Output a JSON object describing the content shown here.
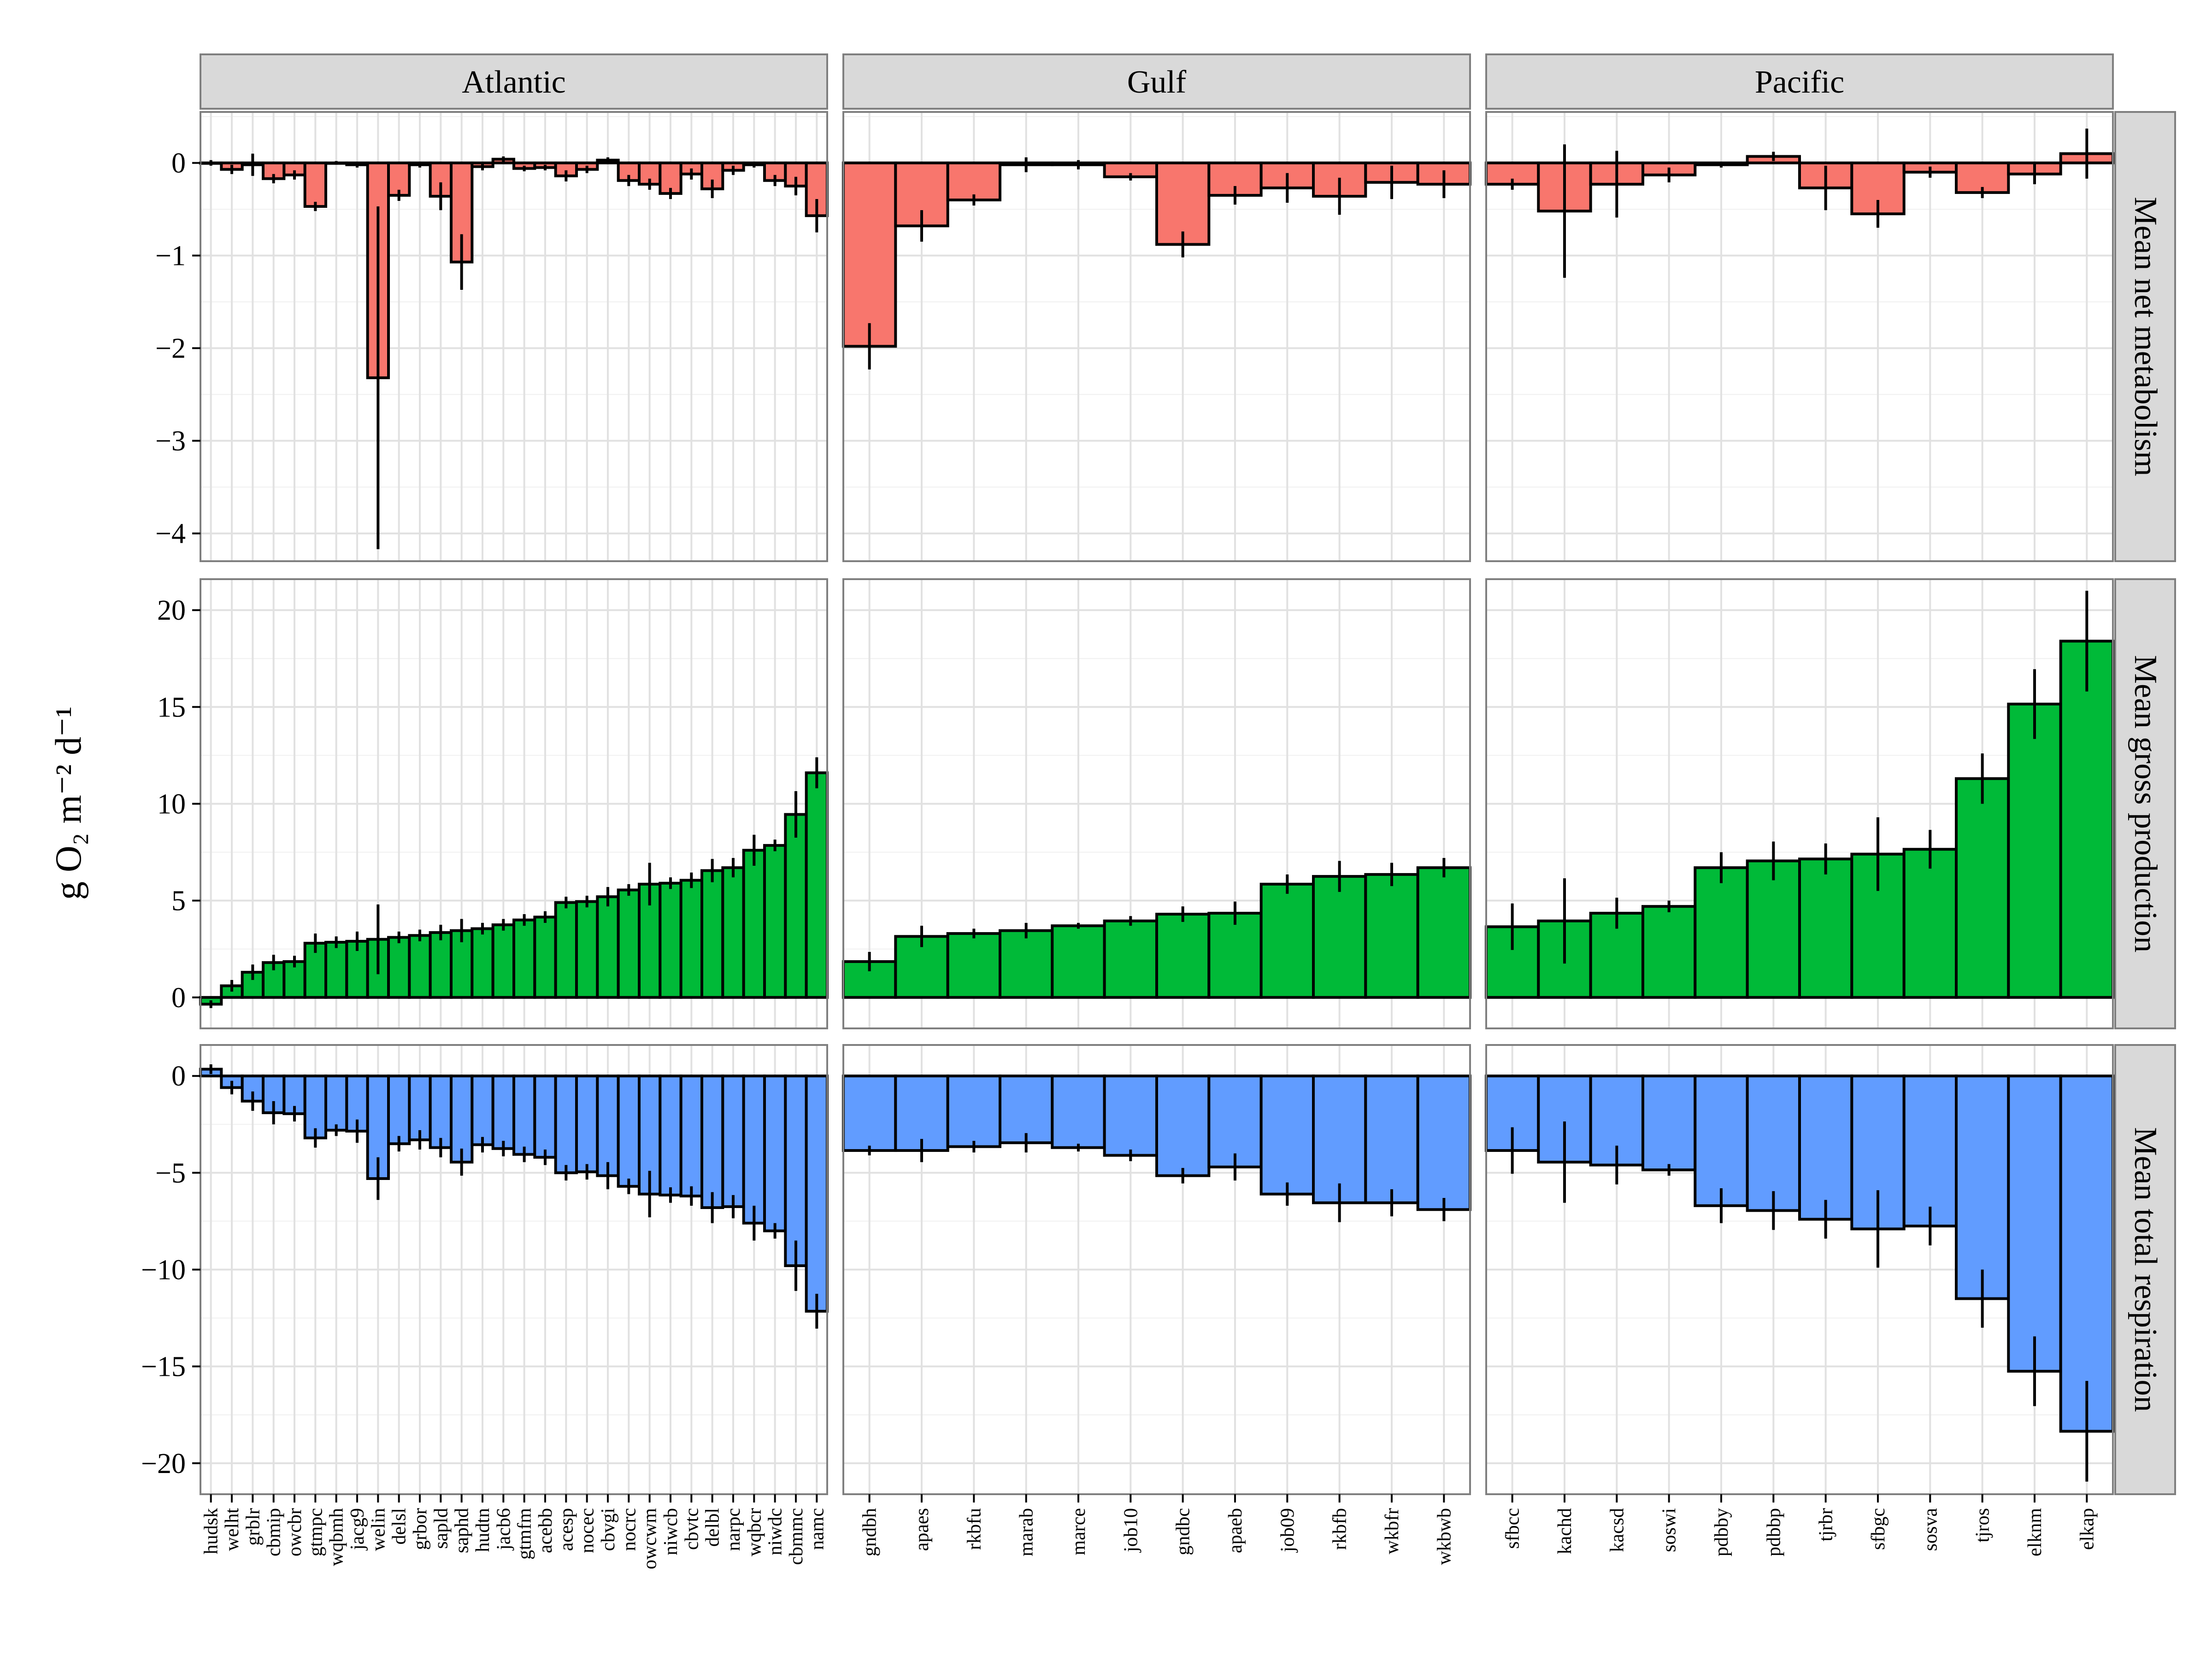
{
  "chart_data": {
    "type": "bar",
    "ylabel": "g O₂ m⁻² d⁻¹",
    "columns": [
      "Atlantic",
      "Gulf",
      "Pacific"
    ],
    "rows": [
      "Mean net metabolism",
      "Mean gross production",
      "Mean total respiration"
    ],
    "row_ylim": [
      [
        -4.3,
        0.55
      ],
      [
        -1.6,
        21.6
      ],
      [
        -21.6,
        1.6
      ]
    ],
    "row_yticks": [
      [
        0,
        -1,
        -2,
        -3,
        -4
      ],
      [
        0,
        5,
        10,
        15,
        20
      ],
      [
        0,
        -5,
        -10,
        -15,
        -20
      ]
    ],
    "tick_labels": [
      [
        "0",
        "−1",
        "−2",
        "−3",
        "−4"
      ],
      [
        "0",
        "5",
        "10",
        "15",
        "20"
      ],
      [
        "0",
        "−5",
        "−10",
        "−15",
        "−20"
      ]
    ],
    "row_colors": [
      "#F8766D",
      "#00BA38",
      "#619CFF"
    ],
    "grid": true,
    "panels": [
      {
        "column": "Atlantic",
        "categories": [
          "hudsk",
          "welht",
          "grblr",
          "cbmip",
          "owcbr",
          "gtmpc",
          "wqbmh",
          "jacg9",
          "welin",
          "delsl",
          "grbor",
          "sapld",
          "saphd",
          "hudtn",
          "jacb6",
          "gtmfm",
          "acebb",
          "acesp",
          "nocec",
          "cbvgi",
          "nocrc",
          "owcwm",
          "niwcb",
          "cbvtc",
          "delbl",
          "narpc",
          "wqbcr",
          "niwdc",
          "cbmmc",
          "namc"
        ],
        "net": [
          0.0,
          -0.07,
          -0.02,
          -0.17,
          -0.13,
          -0.47,
          0.0,
          -0.02,
          -2.32,
          -0.35,
          -0.02,
          -0.36,
          -1.07,
          -0.04,
          0.04,
          -0.06,
          -0.05,
          -0.14,
          -0.07,
          0.03,
          -0.19,
          -0.23,
          -0.33,
          -0.12,
          -0.28,
          -0.08,
          -0.02,
          -0.19,
          -0.25,
          -0.57
        ],
        "net_err": [
          0.03,
          0.05,
          0.12,
          0.05,
          0.05,
          0.05,
          0.02,
          0.03,
          1.85,
          0.06,
          0.03,
          0.15,
          0.3,
          0.04,
          0.03,
          0.03,
          0.03,
          0.06,
          0.04,
          0.03,
          0.06,
          0.06,
          0.06,
          0.06,
          0.1,
          0.05,
          0.03,
          0.06,
          0.1,
          0.18
        ],
        "gross": [
          -0.35,
          0.6,
          1.3,
          1.8,
          1.85,
          2.8,
          2.85,
          2.9,
          3.0,
          3.1,
          3.2,
          3.35,
          3.45,
          3.55,
          3.75,
          4.0,
          4.15,
          4.9,
          4.95,
          5.2,
          5.55,
          5.85,
          5.9,
          6.05,
          6.55,
          6.7,
          7.6,
          7.85,
          9.45,
          11.6
        ],
        "gross_err": [
          0.2,
          0.3,
          0.4,
          0.4,
          0.3,
          0.5,
          0.3,
          0.5,
          1.8,
          0.3,
          0.3,
          0.4,
          0.6,
          0.3,
          0.3,
          0.3,
          0.3,
          0.3,
          0.3,
          0.5,
          0.3,
          1.1,
          0.3,
          0.4,
          0.6,
          0.5,
          0.8,
          0.3,
          1.2,
          0.8
        ],
        "resp": [
          0.35,
          -0.6,
          -1.3,
          -1.9,
          -1.95,
          -3.2,
          -2.8,
          -2.85,
          -5.3,
          -3.5,
          -3.3,
          -3.7,
          -4.45,
          -3.55,
          -3.75,
          -4.05,
          -4.2,
          -5.0,
          -4.95,
          -5.15,
          -5.7,
          -6.1,
          -6.15,
          -6.2,
          -6.8,
          -6.75,
          -7.6,
          -8.0,
          -9.8,
          -12.15
        ],
        "resp_err": [
          0.25,
          0.35,
          0.5,
          0.6,
          0.4,
          0.5,
          0.3,
          0.6,
          1.1,
          0.4,
          0.5,
          0.5,
          0.7,
          0.4,
          0.4,
          0.4,
          0.4,
          0.4,
          0.4,
          0.7,
          0.4,
          1.2,
          0.4,
          0.5,
          0.8,
          0.6,
          0.9,
          0.4,
          1.3,
          0.9
        ]
      },
      {
        "column": "Gulf",
        "categories": [
          "gndbh",
          "apaes",
          "rkbfu",
          "marab",
          "marce",
          "job10",
          "gndbc",
          "apaeb",
          "job09",
          "rkbfb",
          "wkbfr",
          "wkbwb"
        ],
        "net": [
          -1.98,
          -0.68,
          -0.4,
          -0.02,
          -0.02,
          -0.15,
          -0.88,
          -0.35,
          -0.27,
          -0.36,
          -0.21,
          -0.23
        ],
        "net_err": [
          0.25,
          0.17,
          0.06,
          0.08,
          0.05,
          0.04,
          0.14,
          0.1,
          0.16,
          0.2,
          0.18,
          0.15
        ],
        "gross": [
          1.85,
          3.15,
          3.3,
          3.45,
          3.7,
          3.95,
          4.3,
          4.35,
          5.85,
          6.25,
          6.35,
          6.7
        ],
        "gross_err": [
          0.5,
          0.55,
          0.25,
          0.4,
          0.15,
          0.25,
          0.4,
          0.6,
          0.5,
          0.8,
          0.6,
          0.5
        ],
        "resp": [
          -3.85,
          -3.85,
          -3.65,
          -3.45,
          -3.7,
          -4.1,
          -5.15,
          -4.7,
          -6.1,
          -6.55,
          -6.55,
          -6.9
        ],
        "resp_err": [
          0.25,
          0.6,
          0.3,
          0.5,
          0.2,
          0.3,
          0.4,
          0.7,
          0.6,
          1.0,
          0.7,
          0.6
        ]
      },
      {
        "column": "Pacific",
        "categories": [
          "sfbcc",
          "kachd",
          "kacsd",
          "soswi",
          "pdbby",
          "pdbbp",
          "tjrbr",
          "sfbgc",
          "sosva",
          "tjros",
          "elknm",
          "elkap"
        ],
        "net": [
          -0.23,
          -0.52,
          -0.23,
          -0.13,
          -0.02,
          0.07,
          -0.27,
          -0.55,
          -0.1,
          -0.32,
          -0.12,
          0.1
        ],
        "net_err": [
          0.06,
          0.72,
          0.36,
          0.08,
          0.03,
          0.05,
          0.24,
          0.15,
          0.06,
          0.06,
          0.11,
          0.27
        ],
        "gross": [
          3.65,
          3.95,
          4.35,
          4.7,
          6.7,
          7.05,
          7.15,
          7.4,
          7.65,
          11.3,
          15.15,
          18.4
        ],
        "gross_err": [
          1.2,
          2.2,
          0.8,
          0.3,
          0.8,
          1.0,
          0.8,
          1.9,
          1.0,
          1.3,
          1.8,
          2.6
        ],
        "resp": [
          -3.85,
          -4.45,
          -4.6,
          -4.85,
          -6.7,
          -6.95,
          -7.4,
          -7.9,
          -7.75,
          -11.5,
          -15.25,
          -18.35
        ],
        "resp_err": [
          1.2,
          2.1,
          1.0,
          0.3,
          0.9,
          1.0,
          1.0,
          2.0,
          1.0,
          1.5,
          1.8,
          2.6
        ]
      }
    ]
  }
}
